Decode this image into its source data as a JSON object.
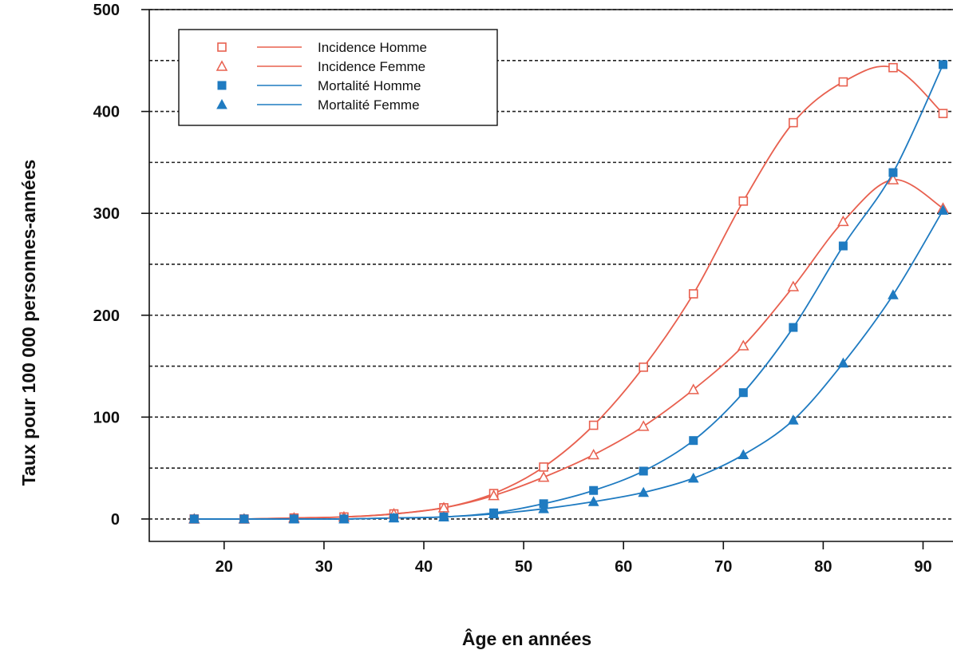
{
  "chart_data": {
    "type": "line",
    "xlabel": "Âge en années",
    "ylabel": "Taux pour 100 000 personnes-années",
    "xlim": [
      12.5,
      93
    ],
    "ylim": [
      -22,
      500
    ],
    "xticks": [
      20,
      30,
      40,
      50,
      60,
      70,
      80,
      90
    ],
    "yticks": [
      0,
      100,
      200,
      300,
      400,
      500
    ],
    "x_tick_labels": [
      "20",
      "30",
      "40",
      "50",
      "60",
      "70",
      "80",
      "90"
    ],
    "y_tick_labels": [
      "0",
      "100",
      "200",
      "300",
      "400",
      "500"
    ],
    "grid": {
      "horizontal": true,
      "style": "dashed",
      "values": [
        0,
        50,
        100,
        150,
        200,
        250,
        300,
        350,
        400,
        450,
        500
      ]
    },
    "legend": {
      "placement": "top-left"
    },
    "x": [
      17,
      22,
      27,
      32,
      37,
      42,
      47,
      52,
      57,
      62,
      67,
      72,
      77,
      82,
      87,
      92
    ],
    "series": [
      {
        "name": "Incidence Homme",
        "marker": "open-square",
        "color": "#e8604f",
        "values": [
          0,
          0,
          1,
          2,
          5,
          11,
          25,
          51,
          92,
          149,
          221,
          312,
          389,
          429,
          443,
          398
        ]
      },
      {
        "name": "Incidence Femme",
        "marker": "open-triangle",
        "color": "#e8604f",
        "values": [
          0,
          0,
          1,
          2,
          5,
          11,
          23,
          41,
          63,
          91,
          127,
          170,
          228,
          292,
          333,
          305
        ]
      },
      {
        "name": "Mortalité Homme",
        "marker": "filled-square",
        "color": "#1f7bc1",
        "values": [
          0,
          0,
          0,
          0,
          1,
          2,
          6,
          15,
          28,
          47,
          77,
          124,
          188,
          268,
          340,
          446
        ]
      },
      {
        "name": "Mortalité Femme",
        "marker": "filled-triangle",
        "color": "#1f7bc1",
        "values": [
          0,
          0,
          0,
          0,
          1,
          2,
          5,
          10,
          17,
          26,
          40,
          63,
          97,
          153,
          220,
          303
        ]
      }
    ]
  }
}
